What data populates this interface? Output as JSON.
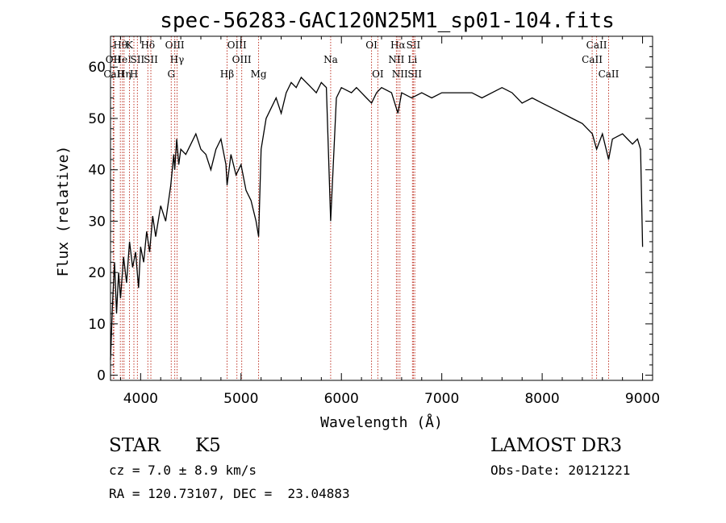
{
  "chart_data": {
    "type": "line",
    "title": "spec-56283-GAC120N25M1_sp01-104.fits",
    "xlabel": "Wavelength (Å)",
    "ylabel": "Flux (relative)",
    "xlim": [
      3700,
      9100
    ],
    "ylim": [
      -1,
      66
    ],
    "xticks": [
      4000,
      5000,
      6000,
      7000,
      8000,
      9000
    ],
    "yticks": [
      0,
      10,
      20,
      30,
      40,
      50,
      60
    ],
    "grid": false,
    "series": [
      {
        "x": [
          3700,
          3720,
          3740,
          3760,
          3780,
          3800,
          3830,
          3860,
          3890,
          3920,
          3950,
          3980,
          4000,
          4030,
          4060,
          4090,
          4120,
          4150,
          4200,
          4250,
          4300,
          4330,
          4340,
          4360,
          4380,
          4400,
          4450,
          4500,
          4550,
          4600,
          4650,
          4700,
          4750,
          4800,
          4850,
          4861,
          4900,
          4950,
          5000,
          5050,
          5100,
          5150,
          5175,
          5200,
          5250,
          5300,
          5350,
          5400,
          5450,
          5500,
          5550,
          5600,
          5650,
          5700,
          5750,
          5800,
          5850,
          5893,
          5950,
          6000,
          6100,
          6150,
          6200,
          6250,
          6300,
          6350,
          6400,
          6500,
          6563,
          6600,
          6700,
          6800,
          6900,
          7000,
          7100,
          7200,
          7300,
          7400,
          7500,
          7600,
          7700,
          7800,
          7900,
          8000,
          8100,
          8200,
          8300,
          8400,
          8450,
          8500,
          8542,
          8600,
          8662,
          8700,
          8800,
          8850,
          8900,
          8950,
          8980,
          9000
        ],
        "y": [
          3,
          14,
          22,
          12,
          20,
          15,
          23,
          18,
          26,
          21,
          24,
          17,
          25,
          22,
          28,
          24,
          31,
          27,
          33,
          30,
          37,
          43,
          40,
          46,
          41,
          44,
          43,
          45,
          47,
          44,
          43,
          40,
          44,
          46,
          41,
          37,
          43,
          39,
          41,
          36,
          34,
          30,
          27,
          44,
          50,
          52,
          54,
          51,
          55,
          57,
          56,
          58,
          57,
          56,
          55,
          57,
          56,
          30,
          54,
          56,
          55,
          56,
          55,
          54,
          53,
          55,
          56,
          55,
          51,
          55,
          54,
          55,
          54,
          55,
          55,
          55,
          55,
          54,
          55,
          56,
          55,
          53,
          54,
          53,
          52,
          51,
          50,
          49,
          48,
          47,
          44,
          47,
          42,
          46,
          47,
          46,
          45,
          46,
          44,
          25
        ]
      }
    ],
    "line_markers": [
      {
        "label": "Hθ",
        "wavelength": 3798,
        "row": 0
      },
      {
        "label": "OII",
        "wavelength": 3727,
        "row": 1
      },
      {
        "label": "CaII",
        "wavelength": 3734,
        "row": 2
      },
      {
        "label": "HeI",
        "wavelength": 3819,
        "row": 1
      },
      {
        "label": "Hη",
        "wavelength": 3835,
        "row": 2
      },
      {
        "label": "K",
        "wavelength": 3889,
        "row": 0
      },
      {
        "label": "H",
        "wavelength": 3933,
        "row": 2
      },
      {
        "label": "SII",
        "wavelength": 3968,
        "row": 1
      },
      {
        "label": "Hδ",
        "wavelength": 4072,
        "row": 0
      },
      {
        "label": "SII",
        "wavelength": 4102,
        "row": 1
      },
      {
        "label": "OIII",
        "wavelength": 4340,
        "row": 0
      },
      {
        "label": "Hγ",
        "wavelength": 4363,
        "row": 1
      },
      {
        "label": "G",
        "wavelength": 4305,
        "row": 2
      },
      {
        "label": "Hβ",
        "wavelength": 4861,
        "row": 2
      },
      {
        "label": "OIII",
        "wavelength": 4959,
        "row": 0
      },
      {
        "label": "OIII",
        "wavelength": 5007,
        "row": 1
      },
      {
        "label": "Mg",
        "wavelength": 5175,
        "row": 2
      },
      {
        "label": "Na",
        "wavelength": 5893,
        "row": 1
      },
      {
        "label": "OI",
        "wavelength": 6300,
        "row": 0
      },
      {
        "label": "OI",
        "wavelength": 6363,
        "row": 2
      },
      {
        "label": "Hα",
        "wavelength": 6563,
        "row": 0
      },
      {
        "label": "NII",
        "wavelength": 6548,
        "row": 1
      },
      {
        "label": "NII",
        "wavelength": 6583,
        "row": 2
      },
      {
        "label": "SII",
        "wavelength": 6717,
        "row": 0
      },
      {
        "label": "Li",
        "wavelength": 6708,
        "row": 1
      },
      {
        "label": "SII",
        "wavelength": 6731,
        "row": 2
      },
      {
        "label": "CaII",
        "wavelength": 8542,
        "row": 0
      },
      {
        "label": "CaII",
        "wavelength": 8498,
        "row": 1
      },
      {
        "label": "CaII",
        "wavelength": 8662,
        "row": 2
      }
    ]
  },
  "info": {
    "class_label": "STAR",
    "subclass_label": "K5",
    "survey": "LAMOST DR3",
    "cz": "cz = 7.0 ± 8.9 km/s",
    "obs_date": "Obs-Date: 20121221",
    "radec": "RA = 120.73107, DEC =  23.04883"
  },
  "colors": {
    "spectrum": "#000000",
    "line_markers": "#c0392b",
    "background": "#ffffff"
  }
}
